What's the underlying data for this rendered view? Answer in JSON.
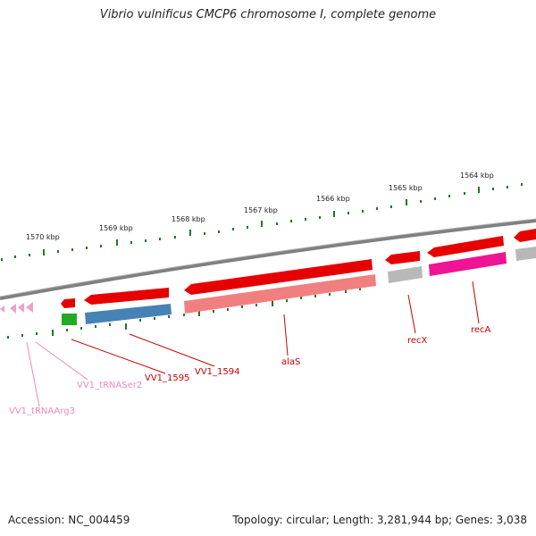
{
  "title": "Vibrio vulnificus CMCP6 chromosome I, complete genome",
  "footer": {
    "accession": "Accession: NC_004459",
    "topology": "Topology: circular; Length: 3,281,944 bp; Genes: 3,038"
  },
  "scale_labels": [
    "1570 kbp",
    "1569 kbp",
    "1568 kbp",
    "1567 kbp",
    "1566 kbp",
    "1565 kbp",
    "1564 kbp"
  ],
  "gene_labels": {
    "tRNAArg3": "VV1_tRNAArg3",
    "tRNASer2": "VV1_tRNASer2",
    "vv1595": "VV1_1595",
    "vv1594": "VV1_1594",
    "alaS": "alaS",
    "recX": "recX",
    "recA": "recA"
  },
  "colors": {
    "backbone": "#808080",
    "gene_red": "#e60000",
    "gene_pink_light": "#f08080",
    "gene_blue": "#4682b4",
    "gene_green": "#22aa22",
    "gene_magenta": "#ee1493",
    "gene_grey": "#b8b8b8",
    "trna_pink": "#f0a0c8",
    "tick_green": "#227722",
    "label_red": "#cc0000",
    "label_pink": "#ee88bb"
  }
}
